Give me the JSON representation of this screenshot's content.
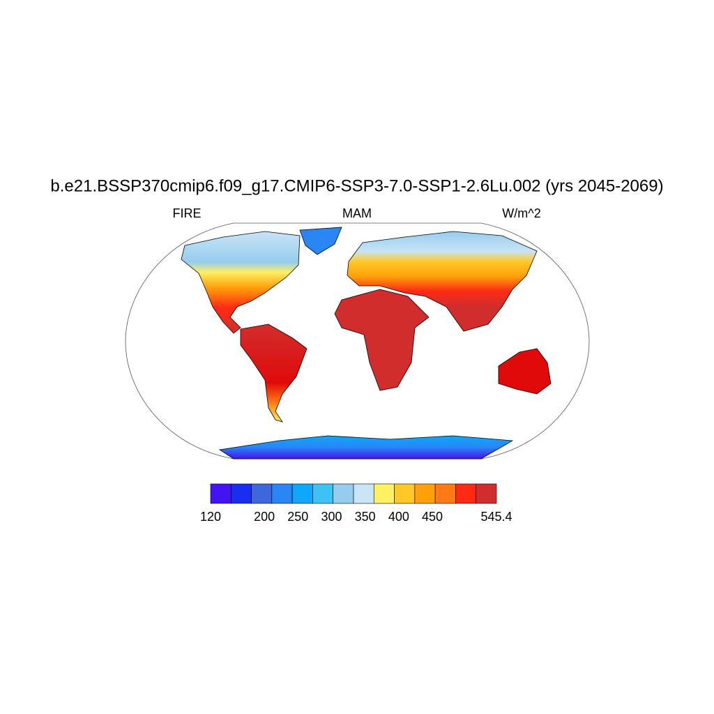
{
  "title": "b.e21.BSSP370cmip6.f09_g17.CMIP6-SSP3-7.0-SSP1-2.6Lu.002 (yrs 2045-2069)",
  "left_label": "FIRE",
  "center_label": "MAM",
  "right_label": "W/m^2",
  "colorbar": {
    "colors": [
      "#4314f2",
      "#1a2ef0",
      "#3d67dd",
      "#2a86f5",
      "#0fa7fa",
      "#3cc2f5",
      "#96cdee",
      "#c8e4f5",
      "#fff064",
      "#ffc828",
      "#ffa00a",
      "#ff7a14",
      "#ff2a14",
      "#d22d2d"
    ],
    "ticks": [
      120,
      200,
      250,
      300,
      350,
      400,
      450,
      545.4
    ]
  }
}
